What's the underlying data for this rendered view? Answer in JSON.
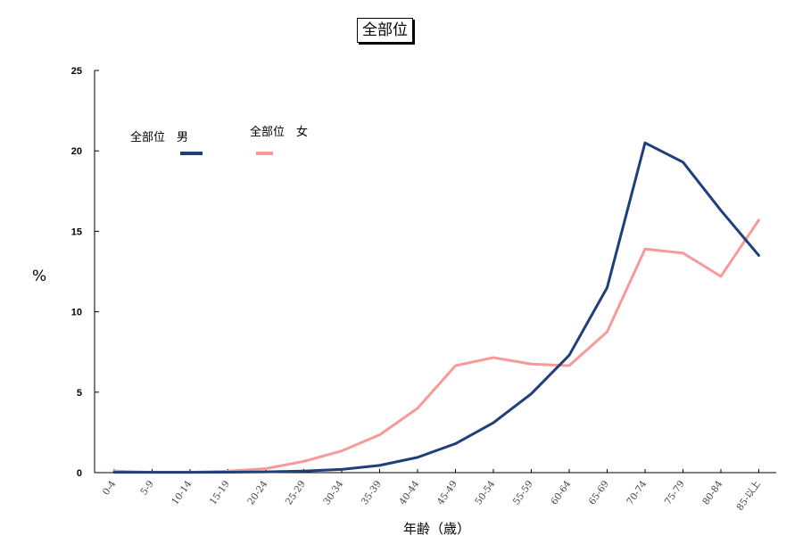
{
  "title": "全部位",
  "chart_data": {
    "type": "line",
    "title": "全部位",
    "xlabel": "年齢（歳）",
    "ylabel": "%",
    "ylim": [
      0,
      25
    ],
    "yticks": [
      0,
      5,
      10,
      15,
      20,
      25
    ],
    "grid": false,
    "legend_position": "top-left",
    "categories": [
      "0-4",
      "5-9",
      "10-14",
      "15-19",
      "20-24",
      "25-29",
      "30-34",
      "35-39",
      "40-44",
      "45-49",
      "50-54",
      "55-59",
      "60-64",
      "65-69",
      "70-74",
      "75-79",
      "80-84",
      "85-以上"
    ],
    "series": [
      {
        "name": "全部位　男",
        "color": "#1f3f7a",
        "values": [
          0.02,
          0.02,
          0.02,
          0.03,
          0.05,
          0.1,
          0.2,
          0.45,
          0.95,
          1.8,
          3.1,
          4.9,
          7.3,
          11.5,
          20.5,
          19.3,
          16.3,
          13.5
        ]
      },
      {
        "name": "全部位　女",
        "color": "#f79a9a",
        "values": [
          0.1,
          0.02,
          0.02,
          0.1,
          0.25,
          0.7,
          1.35,
          2.35,
          4.0,
          6.65,
          7.15,
          6.75,
          6.65,
          8.75,
          13.9,
          13.65,
          12.2,
          15.7
        ]
      }
    ]
  }
}
